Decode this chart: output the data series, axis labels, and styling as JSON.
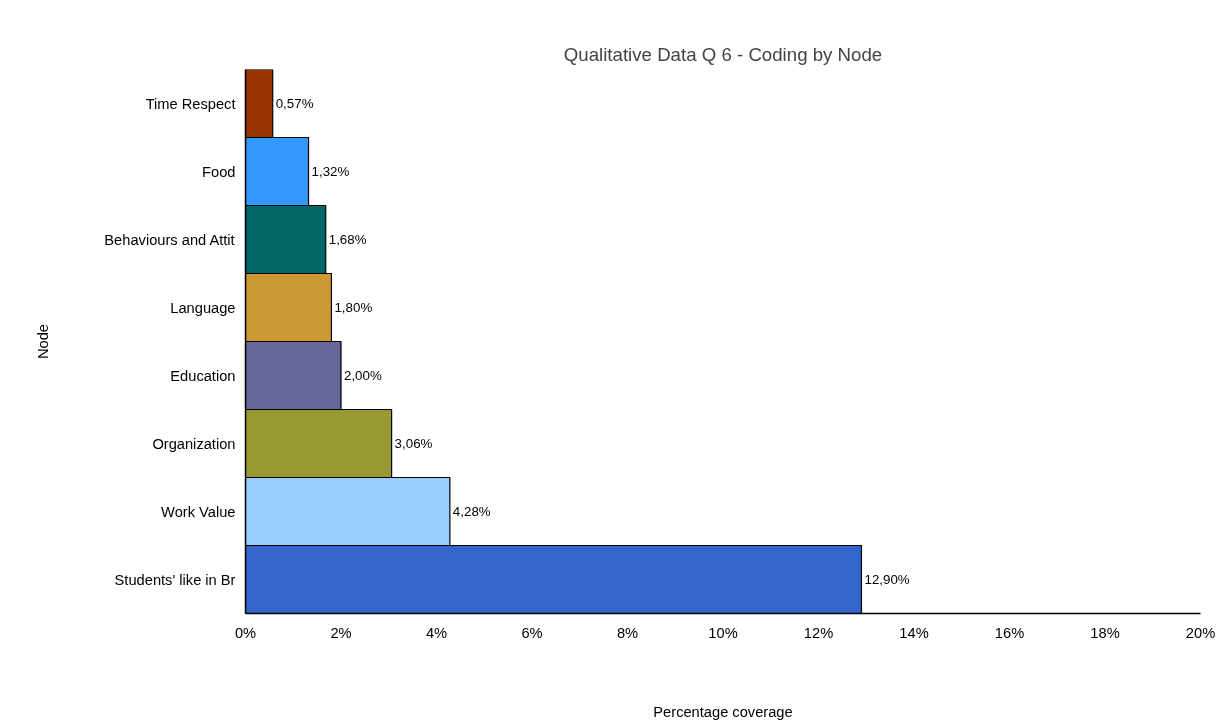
{
  "chart_data": {
    "type": "bar",
    "orientation": "horizontal",
    "title": "Qualitative Data Q 6 - Coding by Node",
    "xlabel": "Percentage coverage",
    "ylabel": "Node",
    "categories": [
      "Time Respect",
      "Food",
      "Behaviours and Attit",
      "Language",
      "Education",
      "Organization",
      "Work Value",
      "Students' like in Br"
    ],
    "values": [
      0.57,
      1.32,
      1.68,
      1.8,
      2.0,
      3.06,
      4.28,
      12.9
    ],
    "value_labels": [
      "0,57%",
      "1,32%",
      "1,68%",
      "1,80%",
      "2,00%",
      "3,06%",
      "4,28%",
      "12,90%"
    ],
    "colors": [
      "#993300",
      "#3399ff",
      "#006666",
      "#cc9933",
      "#666699",
      "#999933",
      "#99ccff",
      "#3366cc"
    ],
    "xlim": [
      0,
      20
    ],
    "xticks": [
      {
        "value": 0,
        "label": "0%"
      },
      {
        "value": 2,
        "label": "2%"
      },
      {
        "value": 4,
        "label": "4%"
      },
      {
        "value": 6,
        "label": "6%"
      },
      {
        "value": 8,
        "label": "8%"
      },
      {
        "value": 10,
        "label": "10%"
      },
      {
        "value": 12,
        "label": "12%"
      },
      {
        "value": 14,
        "label": "14%"
      },
      {
        "value": 16,
        "label": "16%"
      },
      {
        "value": 18,
        "label": "18%"
      },
      {
        "value": 20,
        "label": "20%"
      }
    ],
    "grid": false
  }
}
